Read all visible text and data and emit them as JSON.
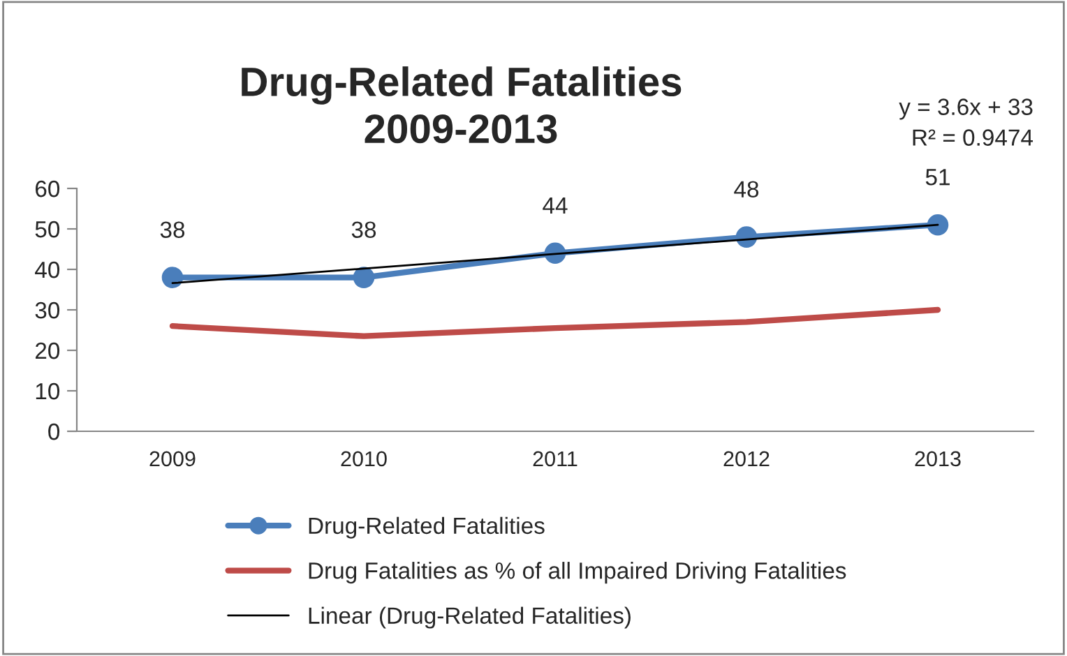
{
  "chart_data": {
    "type": "line",
    "title": "Drug-Related Fatalities\n2009-2013",
    "categories": [
      "2009",
      "2010",
      "2011",
      "2012",
      "2013"
    ],
    "series": [
      {
        "name": "Drug-Related Fatalities",
        "color": "#4a7ebb",
        "values": [
          38,
          38,
          44,
          48,
          51
        ],
        "marker": "circle",
        "value_labels": [
          "38",
          "38",
          "44",
          "48",
          "51"
        ]
      },
      {
        "name": "Drug Fatalities as % of all Impaired Driving Fatalities",
        "color": "#be4b48",
        "values": [
          26,
          23.5,
          25.5,
          27,
          30
        ],
        "marker": "none"
      },
      {
        "name": "Linear (Drug-Related Fatalities)",
        "color": "#000000",
        "type": "line",
        "values": [
          36.6,
          40.2,
          43.8,
          47.4,
          51
        ],
        "marker": "none"
      }
    ],
    "annotations": [
      "y = 3.6x + 33",
      "R² = 0.9474"
    ],
    "ylim": [
      0,
      60
    ],
    "yticks": [
      0,
      10,
      20,
      30,
      40,
      50,
      60
    ],
    "grid": false,
    "legend": "bottom",
    "line_style": "solid"
  }
}
